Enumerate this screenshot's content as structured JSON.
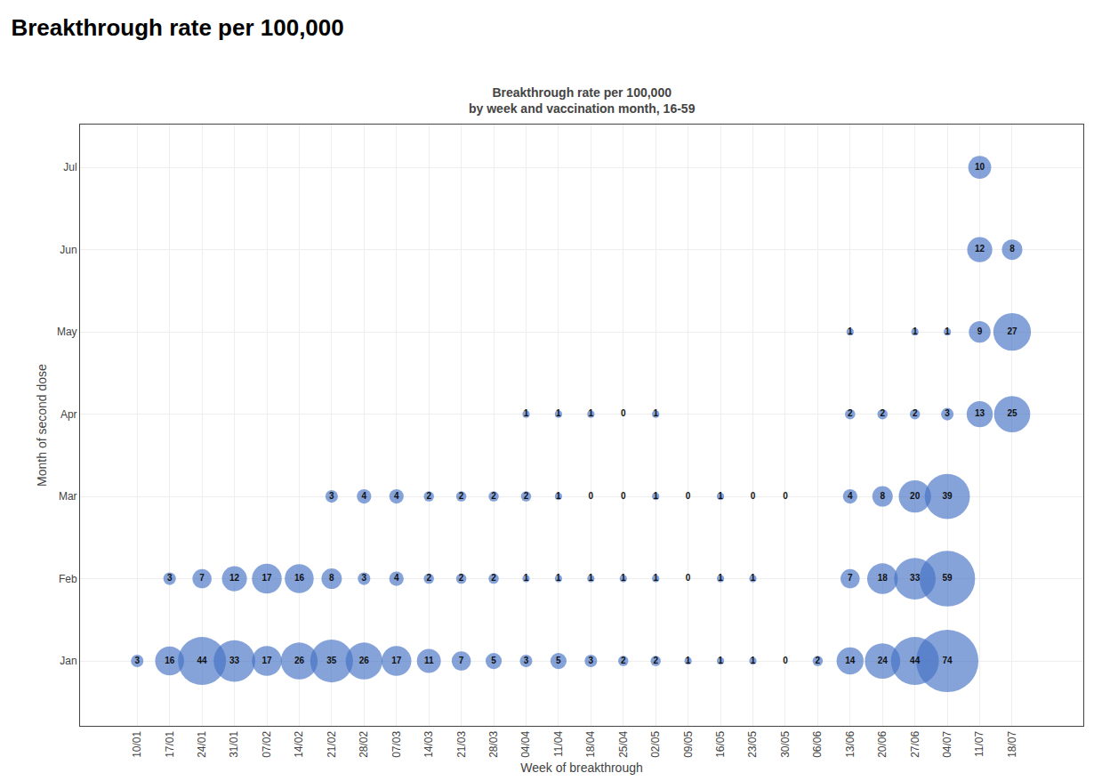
{
  "chart_data": {
    "type": "bubble",
    "title": "Breakthrough rate per 100,000",
    "subtitle": "Breakthrough rate per 100,000\nby week and vaccination month, 16-59",
    "xlabel": "Week of breakthrough",
    "ylabel": "Month of second dose",
    "color": "#4472c4",
    "grid": true,
    "data_labels": true,
    "categories": [
      "10/01",
      "17/01",
      "24/01",
      "31/01",
      "07/02",
      "14/02",
      "21/02",
      "28/02",
      "07/03",
      "14/03",
      "21/03",
      "28/03",
      "04/04",
      "11/04",
      "18/04",
      "25/04",
      "02/05",
      "09/05",
      "16/05",
      "23/05",
      "30/05",
      "06/06",
      "13/06",
      "20/06",
      "27/06",
      "04/07",
      "11/07",
      "18/07"
    ],
    "y_categories": [
      "Jan",
      "Feb",
      "Mar",
      "Apr",
      "May",
      "Jun",
      "Jul"
    ],
    "points": [
      {
        "x": "10/01",
        "y": "Jan",
        "value": 3
      },
      {
        "x": "17/01",
        "y": "Jan",
        "value": 16
      },
      {
        "x": "24/01",
        "y": "Jan",
        "value": 44
      },
      {
        "x": "31/01",
        "y": "Jan",
        "value": 33
      },
      {
        "x": "07/02",
        "y": "Jan",
        "value": 17
      },
      {
        "x": "14/02",
        "y": "Jan",
        "value": 26
      },
      {
        "x": "21/02",
        "y": "Jan",
        "value": 35
      },
      {
        "x": "28/02",
        "y": "Jan",
        "value": 26
      },
      {
        "x": "07/03",
        "y": "Jan",
        "value": 17
      },
      {
        "x": "14/03",
        "y": "Jan",
        "value": 11
      },
      {
        "x": "21/03",
        "y": "Jan",
        "value": 7
      },
      {
        "x": "28/03",
        "y": "Jan",
        "value": 5
      },
      {
        "x": "04/04",
        "y": "Jan",
        "value": 3
      },
      {
        "x": "11/04",
        "y": "Jan",
        "value": 5
      },
      {
        "x": "18/04",
        "y": "Jan",
        "value": 3
      },
      {
        "x": "25/04",
        "y": "Jan",
        "value": 2
      },
      {
        "x": "02/05",
        "y": "Jan",
        "value": 2
      },
      {
        "x": "09/05",
        "y": "Jan",
        "value": 1
      },
      {
        "x": "16/05",
        "y": "Jan",
        "value": 1
      },
      {
        "x": "23/05",
        "y": "Jan",
        "value": 1
      },
      {
        "x": "30/05",
        "y": "Jan",
        "value": 0
      },
      {
        "x": "06/06",
        "y": "Jan",
        "value": 2
      },
      {
        "x": "13/06",
        "y": "Jan",
        "value": 14
      },
      {
        "x": "20/06",
        "y": "Jan",
        "value": 24
      },
      {
        "x": "27/06",
        "y": "Jan",
        "value": 44
      },
      {
        "x": "04/07",
        "y": "Jan",
        "value": 74
      },
      {
        "x": "17/01",
        "y": "Feb",
        "value": 3
      },
      {
        "x": "24/01",
        "y": "Feb",
        "value": 7
      },
      {
        "x": "31/01",
        "y": "Feb",
        "value": 12
      },
      {
        "x": "07/02",
        "y": "Feb",
        "value": 17
      },
      {
        "x": "14/02",
        "y": "Feb",
        "value": 16
      },
      {
        "x": "21/02",
        "y": "Feb",
        "value": 8
      },
      {
        "x": "28/02",
        "y": "Feb",
        "value": 3
      },
      {
        "x": "07/03",
        "y": "Feb",
        "value": 4
      },
      {
        "x": "14/03",
        "y": "Feb",
        "value": 2
      },
      {
        "x": "21/03",
        "y": "Feb",
        "value": 2
      },
      {
        "x": "28/03",
        "y": "Feb",
        "value": 2
      },
      {
        "x": "04/04",
        "y": "Feb",
        "value": 1
      },
      {
        "x": "11/04",
        "y": "Feb",
        "value": 1
      },
      {
        "x": "18/04",
        "y": "Feb",
        "value": 1
      },
      {
        "x": "25/04",
        "y": "Feb",
        "value": 1
      },
      {
        "x": "02/05",
        "y": "Feb",
        "value": 1
      },
      {
        "x": "09/05",
        "y": "Feb",
        "value": 0
      },
      {
        "x": "16/05",
        "y": "Feb",
        "value": 1
      },
      {
        "x": "23/05",
        "y": "Feb",
        "value": 1
      },
      {
        "x": "13/06",
        "y": "Feb",
        "value": 7
      },
      {
        "x": "20/06",
        "y": "Feb",
        "value": 18
      },
      {
        "x": "27/06",
        "y": "Feb",
        "value": 33
      },
      {
        "x": "04/07",
        "y": "Feb",
        "value": 59
      },
      {
        "x": "21/02",
        "y": "Mar",
        "value": 3
      },
      {
        "x": "28/02",
        "y": "Mar",
        "value": 4
      },
      {
        "x": "07/03",
        "y": "Mar",
        "value": 4
      },
      {
        "x": "14/03",
        "y": "Mar",
        "value": 2
      },
      {
        "x": "21/03",
        "y": "Mar",
        "value": 2
      },
      {
        "x": "28/03",
        "y": "Mar",
        "value": 2
      },
      {
        "x": "04/04",
        "y": "Mar",
        "value": 2
      },
      {
        "x": "11/04",
        "y": "Mar",
        "value": 1
      },
      {
        "x": "18/04",
        "y": "Mar",
        "value": 0
      },
      {
        "x": "25/04",
        "y": "Mar",
        "value": 0
      },
      {
        "x": "02/05",
        "y": "Mar",
        "value": 1
      },
      {
        "x": "09/05",
        "y": "Mar",
        "value": 0
      },
      {
        "x": "16/05",
        "y": "Mar",
        "value": 1
      },
      {
        "x": "23/05",
        "y": "Mar",
        "value": 0
      },
      {
        "x": "30/05",
        "y": "Mar",
        "value": 0
      },
      {
        "x": "13/06",
        "y": "Mar",
        "value": 4
      },
      {
        "x": "20/06",
        "y": "Mar",
        "value": 8
      },
      {
        "x": "27/06",
        "y": "Mar",
        "value": 20
      },
      {
        "x": "04/07",
        "y": "Mar",
        "value": 39
      },
      {
        "x": "04/04",
        "y": "Apr",
        "value": 1
      },
      {
        "x": "11/04",
        "y": "Apr",
        "value": 1
      },
      {
        "x": "18/04",
        "y": "Apr",
        "value": 1
      },
      {
        "x": "25/04",
        "y": "Apr",
        "value": 0
      },
      {
        "x": "02/05",
        "y": "Apr",
        "value": 1
      },
      {
        "x": "13/06",
        "y": "Apr",
        "value": 2
      },
      {
        "x": "20/06",
        "y": "Apr",
        "value": 2
      },
      {
        "x": "27/06",
        "y": "Apr",
        "value": 2
      },
      {
        "x": "04/07",
        "y": "Apr",
        "value": 3
      },
      {
        "x": "11/07",
        "y": "Apr",
        "value": 13
      },
      {
        "x": "18/07",
        "y": "Apr",
        "value": 25
      },
      {
        "x": "13/06",
        "y": "May",
        "value": 1
      },
      {
        "x": "27/06",
        "y": "May",
        "value": 1
      },
      {
        "x": "04/07",
        "y": "May",
        "value": 1
      },
      {
        "x": "11/07",
        "y": "May",
        "value": 9
      },
      {
        "x": "18/07",
        "y": "May",
        "value": 27
      },
      {
        "x": "11/07",
        "y": "Jun",
        "value": 12
      },
      {
        "x": "18/07",
        "y": "Jun",
        "value": 8
      },
      {
        "x": "11/07",
        "y": "Jul",
        "value": 10
      }
    ]
  }
}
